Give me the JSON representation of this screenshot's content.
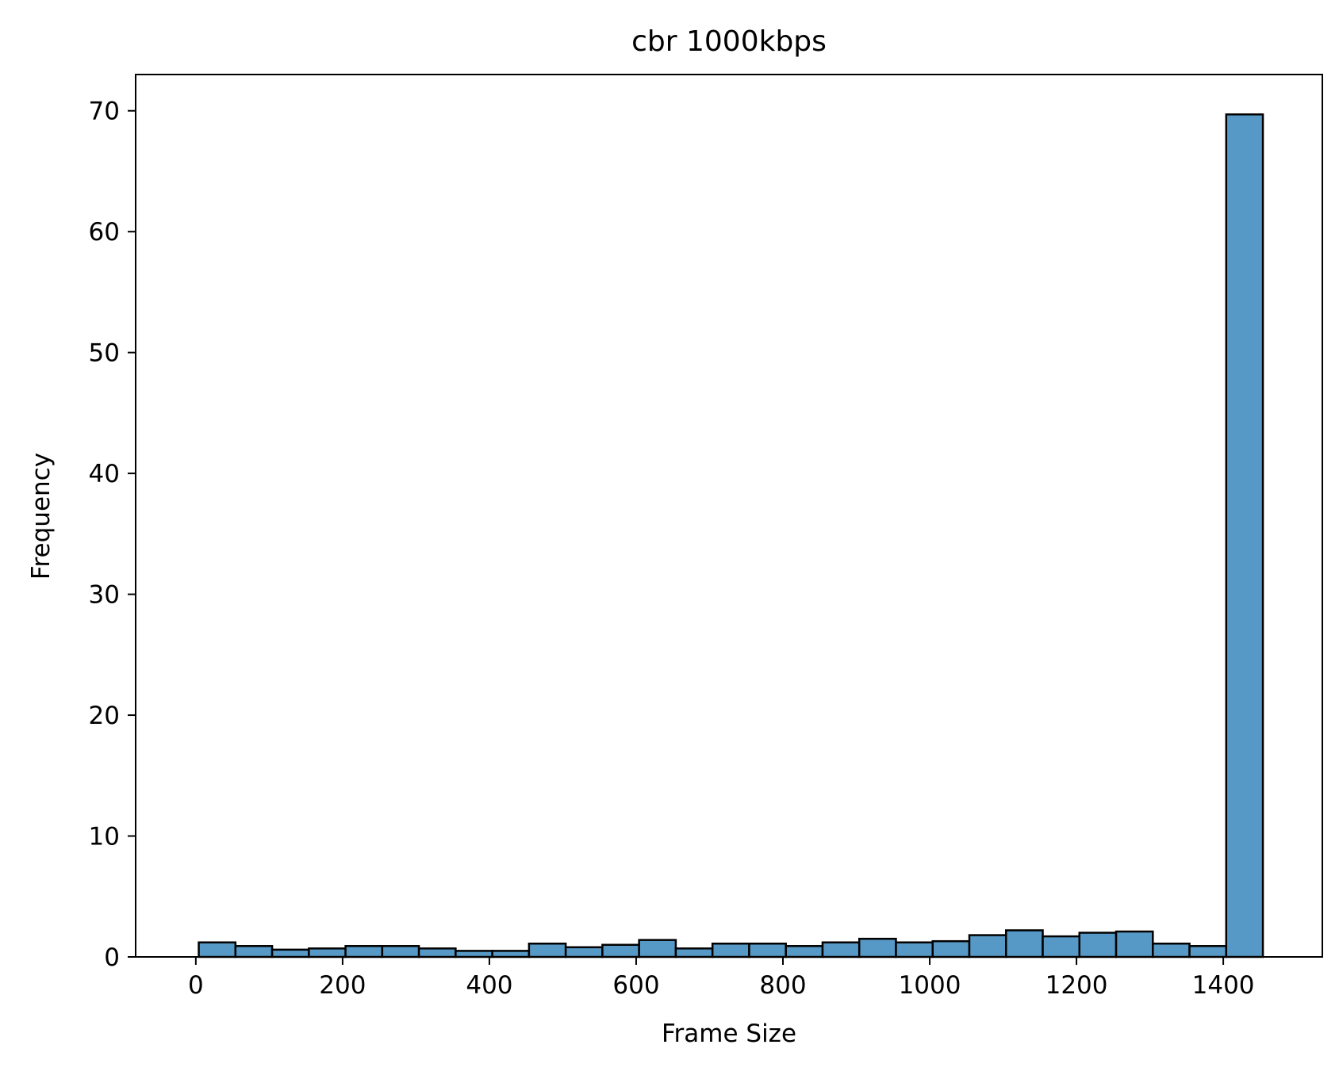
{
  "chart_data": {
    "type": "histogram",
    "title": "cbr 1000kbps",
    "xlabel": "Frame Size",
    "ylabel": "Frequency",
    "xlim": [
      -82,
      1535
    ],
    "ylim": [
      0,
      73
    ],
    "xticks": [
      0,
      200,
      400,
      600,
      800,
      1000,
      1200,
      1400
    ],
    "yticks": [
      0,
      10,
      20,
      30,
      40,
      50,
      60,
      70
    ],
    "grid": false,
    "bar_color": "#5799c6",
    "edge_color": "#000000",
    "bins": [
      {
        "x0": 4,
        "x1": 54,
        "value": 1.2
      },
      {
        "x0": 54,
        "x1": 104,
        "value": 0.9
      },
      {
        "x0": 104,
        "x1": 154,
        "value": 0.6
      },
      {
        "x0": 154,
        "x1": 204,
        "value": 0.7
      },
      {
        "x0": 204,
        "x1": 254,
        "value": 0.9
      },
      {
        "x0": 254,
        "x1": 304,
        "value": 0.9
      },
      {
        "x0": 304,
        "x1": 354,
        "value": 0.7
      },
      {
        "x0": 354,
        "x1": 404,
        "value": 0.5
      },
      {
        "x0": 404,
        "x1": 454,
        "value": 0.5
      },
      {
        "x0": 454,
        "x1": 504,
        "value": 1.1
      },
      {
        "x0": 504,
        "x1": 554,
        "value": 0.8
      },
      {
        "x0": 554,
        "x1": 604,
        "value": 1.0
      },
      {
        "x0": 604,
        "x1": 654,
        "value": 1.4
      },
      {
        "x0": 654,
        "x1": 704,
        "value": 0.7
      },
      {
        "x0": 704,
        "x1": 754,
        "value": 1.1
      },
      {
        "x0": 754,
        "x1": 804,
        "value": 1.1
      },
      {
        "x0": 804,
        "x1": 854,
        "value": 0.9
      },
      {
        "x0": 854,
        "x1": 904,
        "value": 1.2
      },
      {
        "x0": 904,
        "x1": 954,
        "value": 1.5
      },
      {
        "x0": 954,
        "x1": 1004,
        "value": 1.2
      },
      {
        "x0": 1004,
        "x1": 1054,
        "value": 1.3
      },
      {
        "x0": 1054,
        "x1": 1104,
        "value": 1.8
      },
      {
        "x0": 1104,
        "x1": 1154,
        "value": 2.2
      },
      {
        "x0": 1154,
        "x1": 1204,
        "value": 1.7
      },
      {
        "x0": 1204,
        "x1": 1254,
        "value": 2.0
      },
      {
        "x0": 1254,
        "x1": 1304,
        "value": 2.1
      },
      {
        "x0": 1304,
        "x1": 1354,
        "value": 1.1
      },
      {
        "x0": 1354,
        "x1": 1404,
        "value": 0.9
      },
      {
        "x0": 1404,
        "x1": 1454,
        "value": 69.7
      }
    ]
  }
}
